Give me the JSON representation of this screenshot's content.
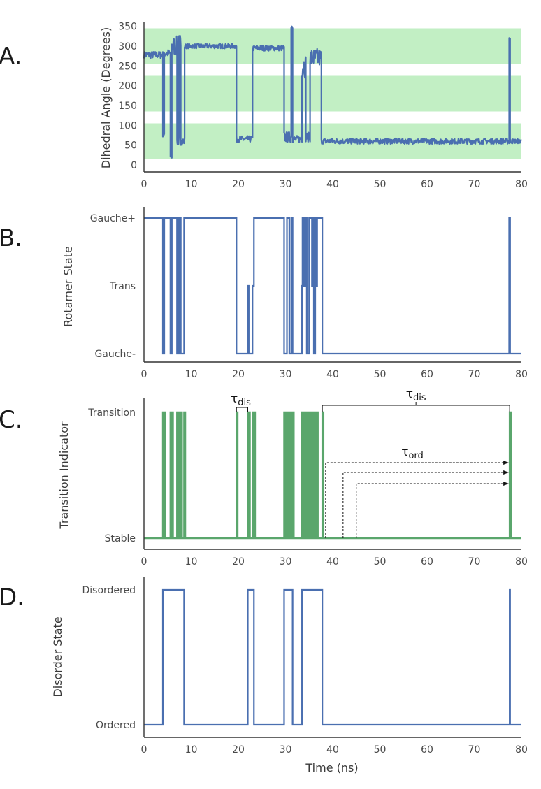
{
  "figure": {
    "colors": {
      "blue": "#4a6fb0",
      "green": "#5aa66c",
      "band": "#c2efc4",
      "axis": "#333333"
    },
    "panel_letters": [
      "A.",
      "B.",
      "C.",
      "D."
    ],
    "annotations": {
      "tau_dis_short": "τdis",
      "tau_dis_long": "τdis",
      "tau_ord": "τord",
      "tau_symbol": "τ",
      "sub_dis": "dis",
      "sub_ord": "ord"
    }
  },
  "chart_data": [
    {
      "panel": "A.",
      "type": "line",
      "ylabel": "Dihedral Angle (Degrees)",
      "xlabel": "",
      "xlim": [
        0,
        80
      ],
      "ylim": [
        0,
        360
      ],
      "xticks": [
        0,
        10,
        20,
        30,
        40,
        50,
        60,
        70,
        80
      ],
      "yticks": [
        0,
        50,
        100,
        150,
        200,
        250,
        300,
        350
      ],
      "shaded_bands": [
        [
          15,
          105
        ],
        [
          135,
          225
        ],
        [
          255,
          345
        ]
      ],
      "series": [
        {
          "color": "#4a6fb0",
          "segments": [
            {
              "x0": 0,
              "x1": 4,
              "level": 278,
              "noise": 9
            },
            {
              "x0": 4,
              "x1": 4.3,
              "level": 75,
              "noise": 4
            },
            {
              "x0": 4.3,
              "x1": 5.6,
              "level": 282,
              "noise": 10
            },
            {
              "x0": 5.6,
              "x1": 5.9,
              "level": 20,
              "noise": 4
            },
            {
              "x0": 5.9,
              "x1": 7.0,
              "level": 300,
              "noise": 25
            },
            {
              "x0": 7.0,
              "x1": 7.4,
              "level": 60,
              "noise": 10
            },
            {
              "x0": 7.4,
              "x1": 7.8,
              "level": 310,
              "noise": 20
            },
            {
              "x0": 7.8,
              "x1": 8.6,
              "level": 60,
              "noise": 10
            },
            {
              "x0": 8.6,
              "x1": 19.6,
              "level": 300,
              "noise": 6
            },
            {
              "x0": 19.6,
              "x1": 23.0,
              "level": 65,
              "noise": 8
            },
            {
              "x0": 23.0,
              "x1": 29.7,
              "level": 295,
              "noise": 7
            },
            {
              "x0": 29.7,
              "x1": 31.2,
              "level": 70,
              "noise": 14
            },
            {
              "x0": 31.2,
              "x1": 31.5,
              "level": 350,
              "noise": 5
            },
            {
              "x0": 31.5,
              "x1": 33.5,
              "level": 65,
              "noise": 9
            },
            {
              "x0": 33.5,
              "x1": 34.3,
              "level": 250,
              "noise": 30
            },
            {
              "x0": 34.3,
              "x1": 35.2,
              "level": 70,
              "noise": 12
            },
            {
              "x0": 35.2,
              "x1": 37.6,
              "level": 270,
              "noise": 25
            },
            {
              "x0": 37.6,
              "x1": 77.4,
              "level": 60,
              "noise": 7
            },
            {
              "x0": 77.4,
              "x1": 77.6,
              "level": 320,
              "noise": 3
            },
            {
              "x0": 77.6,
              "x1": 80,
              "level": 60,
              "noise": 6
            }
          ]
        }
      ]
    },
    {
      "panel": "B.",
      "type": "line",
      "ylabel": "Rotamer State",
      "xlabel": "",
      "xlim": [
        0,
        80
      ],
      "xticks": [
        0,
        10,
        20,
        30,
        40,
        50,
        60,
        70,
        80
      ],
      "yticks": [
        "Gauche-",
        "Trans",
        "Gauche+"
      ],
      "series": [
        {
          "color": "#4a6fb0",
          "steps": [
            [
              0,
              2
            ],
            [
              4,
              0
            ],
            [
              4.3,
              2
            ],
            [
              5.6,
              0
            ],
            [
              5.9,
              2
            ],
            [
              7.0,
              0
            ],
            [
              7.4,
              2
            ],
            [
              7.8,
              0
            ],
            [
              8.5,
              2
            ],
            [
              19.6,
              0
            ],
            [
              22.0,
              1
            ],
            [
              22.2,
              0
            ],
            [
              23.0,
              1
            ],
            [
              23.3,
              2
            ],
            [
              29.7,
              0
            ],
            [
              30.3,
              2
            ],
            [
              30.8,
              0
            ],
            [
              31.2,
              2
            ],
            [
              31.5,
              0
            ],
            [
              33.5,
              1
            ],
            [
              33.6,
              2
            ],
            [
              33.7,
              1
            ],
            [
              33.8,
              2
            ],
            [
              33.9,
              1
            ],
            [
              34.0,
              2
            ],
            [
              34.1,
              1
            ],
            [
              34.2,
              2
            ],
            [
              34.5,
              0
            ],
            [
              35.0,
              2
            ],
            [
              35.6,
              1
            ],
            [
              35.7,
              2
            ],
            [
              36.0,
              0
            ],
            [
              36.3,
              2
            ],
            [
              36.6,
              1
            ],
            [
              36.7,
              2
            ],
            [
              37.8,
              0
            ],
            [
              77.4,
              2
            ],
            [
              77.6,
              0
            ],
            [
              80,
              0
            ]
          ]
        }
      ]
    },
    {
      "panel": "C.",
      "type": "line",
      "ylabel": "Transition Indicator",
      "xlabel": "",
      "xlim": [
        0,
        80
      ],
      "xticks": [
        0,
        10,
        20,
        30,
        40,
        50,
        60,
        70,
        80
      ],
      "yticks": [
        "Stable",
        "Transition"
      ],
      "series": [
        {
          "color": "#5aa66c",
          "transition_times": [
            4.0,
            4.3,
            5.6,
            5.9,
            7.0,
            7.4,
            7.8,
            8.5,
            19.6,
            22.0,
            22.2,
            23.0,
            23.3,
            29.7,
            30.3,
            30.8,
            31.2,
            31.5,
            33.5,
            33.7,
            33.9,
            34.1,
            34.5,
            35.0,
            35.6,
            36.0,
            36.3,
            36.6,
            37.8,
            77.5
          ]
        }
      ],
      "annotations": [
        {
          "label": "τdis",
          "kind": "bracket",
          "x0": 19.6,
          "x1": 22.0
        },
        {
          "label": "τdis",
          "kind": "bracket",
          "x0": 37.8,
          "x1": 77.5
        },
        {
          "label": "τord",
          "kind": "dashed-arrows",
          "starts": [
            38.5,
            42.2,
            45.0
          ],
          "end": 77.5
        }
      ]
    },
    {
      "panel": "D.",
      "type": "line",
      "ylabel": "Disorder State",
      "xlabel": "Time (ns)",
      "xlim": [
        0,
        80
      ],
      "xticks": [
        0,
        10,
        20,
        30,
        40,
        50,
        60,
        70,
        80
      ],
      "yticks": [
        "Ordered",
        "Disordered"
      ],
      "series": [
        {
          "color": "#4a6fb0",
          "steps": [
            [
              0,
              0
            ],
            [
              4.0,
              1
            ],
            [
              8.5,
              0
            ],
            [
              22.0,
              1
            ],
            [
              23.3,
              0
            ],
            [
              29.7,
              1
            ],
            [
              31.5,
              0
            ],
            [
              33.5,
              1
            ],
            [
              37.8,
              0
            ],
            [
              77.5,
              1
            ],
            [
              77.6,
              0
            ],
            [
              80,
              0
            ]
          ]
        }
      ]
    }
  ]
}
